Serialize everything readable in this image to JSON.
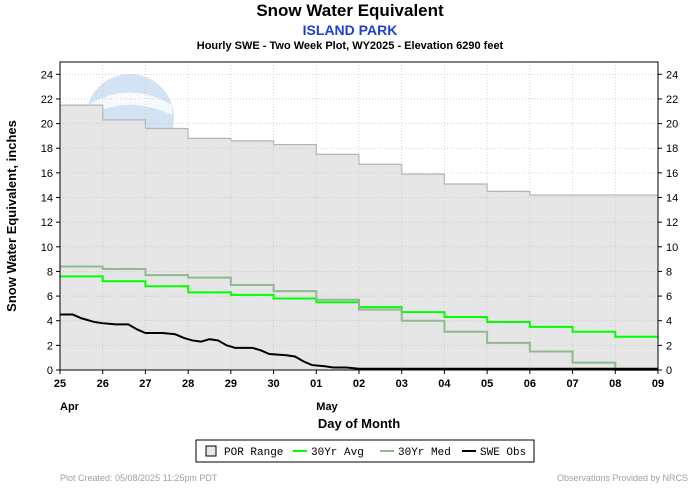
{
  "chart_data": {
    "type": "line",
    "title": "Snow Water Equivalent",
    "subtitle": "ISLAND PARK",
    "description": "Hourly SWE - Two Week Plot, WY2025 -  Elevation 6290 feet",
    "xlabel": "Day of Month",
    "ylabel": "Snow Water Equivalent, inches",
    "ylim": [
      0,
      25
    ],
    "yticks": [
      0,
      2,
      4,
      6,
      8,
      10,
      12,
      14,
      16,
      18,
      20,
      22,
      24
    ],
    "xlim": [
      0,
      14
    ],
    "day_ticks": [
      "25",
      "26",
      "27",
      "28",
      "29",
      "30",
      "01",
      "02",
      "03",
      "04",
      "05",
      "06",
      "07",
      "08",
      "09"
    ],
    "month_labels": [
      {
        "label": "Apr",
        "day": 0
      },
      {
        "label": "May",
        "day": 6
      }
    ],
    "legend": {
      "position": "bottom",
      "entries": [
        "POR Range",
        "30Yr Avg",
        "30Yr Med",
        "SWE Obs"
      ]
    },
    "series": [
      {
        "name": "POR Range",
        "kind": "area",
        "color": "#e6e6e6",
        "steps": [
          [
            0,
            21.5
          ],
          [
            1,
            20.3
          ],
          [
            2,
            19.6
          ],
          [
            3,
            18.8
          ],
          [
            4,
            18.6
          ],
          [
            5,
            18.3
          ],
          [
            6,
            17.5
          ],
          [
            7,
            16.7
          ],
          [
            8,
            15.9
          ],
          [
            9,
            15.1
          ],
          [
            10,
            14.5
          ],
          [
            11,
            14.2
          ],
          [
            14,
            14.2
          ]
        ]
      },
      {
        "name": "30Yr Avg",
        "kind": "step",
        "color": "#00ff00",
        "steps": [
          [
            0,
            7.6
          ],
          [
            1,
            7.2
          ],
          [
            2,
            6.8
          ],
          [
            3,
            6.3
          ],
          [
            4,
            6.1
          ],
          [
            5,
            5.8
          ],
          [
            6,
            5.5
          ],
          [
            7,
            5.1
          ],
          [
            8,
            4.7
          ],
          [
            9,
            4.3
          ],
          [
            10,
            3.9
          ],
          [
            11,
            3.5
          ],
          [
            12,
            3.1
          ],
          [
            13,
            2.7
          ],
          [
            14,
            2.7
          ]
        ]
      },
      {
        "name": "30Yr Med",
        "kind": "step",
        "color": "#8fb98f",
        "steps": [
          [
            0,
            8.4
          ],
          [
            1,
            8.2
          ],
          [
            2,
            7.7
          ],
          [
            3,
            7.5
          ],
          [
            4,
            6.9
          ],
          [
            5,
            6.4
          ],
          [
            6,
            5.7
          ],
          [
            7,
            4.9
          ],
          [
            8,
            4.0
          ],
          [
            9,
            3.1
          ],
          [
            10,
            2.2
          ],
          [
            11,
            1.5
          ],
          [
            12,
            0.6
          ],
          [
            13,
            0
          ],
          [
            14,
            0
          ]
        ]
      },
      {
        "name": "SWE Obs",
        "kind": "line",
        "color": "#000000",
        "points": [
          [
            0,
            4.5
          ],
          [
            0.3,
            4.5
          ],
          [
            0.5,
            4.2
          ],
          [
            0.8,
            3.9
          ],
          [
            1,
            3.8
          ],
          [
            1.3,
            3.7
          ],
          [
            1.6,
            3.7
          ],
          [
            1.8,
            3.3
          ],
          [
            2,
            3.0
          ],
          [
            2.4,
            3.0
          ],
          [
            2.7,
            2.9
          ],
          [
            2.9,
            2.6
          ],
          [
            3.1,
            2.4
          ],
          [
            3.3,
            2.3
          ],
          [
            3.5,
            2.5
          ],
          [
            3.7,
            2.4
          ],
          [
            3.9,
            2.0
          ],
          [
            4.1,
            1.8
          ],
          [
            4.5,
            1.8
          ],
          [
            4.7,
            1.6
          ],
          [
            4.9,
            1.3
          ],
          [
            5.3,
            1.2
          ],
          [
            5.5,
            1.1
          ],
          [
            5.7,
            0.7
          ],
          [
            5.9,
            0.4
          ],
          [
            6.2,
            0.3
          ],
          [
            6.4,
            0.2
          ],
          [
            6.7,
            0.2
          ],
          [
            7,
            0.1
          ],
          [
            8,
            0.1
          ],
          [
            9,
            0.1
          ],
          [
            10,
            0.1
          ],
          [
            12,
            0.1
          ],
          [
            14,
            0.1
          ]
        ]
      }
    ]
  },
  "watermark": "NOAA",
  "footer": {
    "left": "Plot Created: 05/08/2025 11:25pm PDT",
    "right": "Observations Provided by NRCS"
  }
}
